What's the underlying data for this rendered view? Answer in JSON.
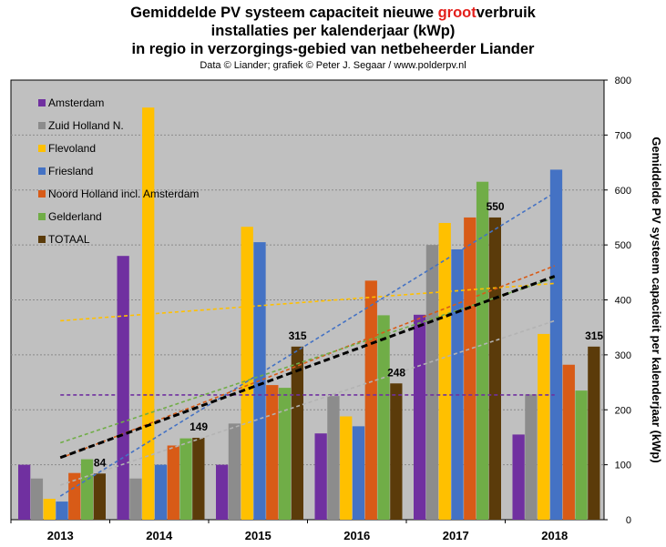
{
  "title": {
    "line1_prefix": "Gemiddelde  PV systeem capaciteit nieuwe ",
    "line1_highlight": "groot",
    "line1_suffix": "verbruik",
    "line2": "installaties  per kalenderjaar (kWp)",
    "line3": "in regio in verzorgings-gebied  van netbeheerder Liander",
    "highlight_color": "#e3201c"
  },
  "subtitle": "Data © Liander; grafiek © Peter J. Segaar / www.polderpv.nl",
  "chart_data": {
    "type": "bar",
    "categories": [
      "2013",
      "2014",
      "2015",
      "2016",
      "2017",
      "2018"
    ],
    "ylabel": "Gemiddelde  PV  systeem capaciteit  per kalenderjaar  (kWp)",
    "ylim": [
      0,
      800
    ],
    "yticks": [
      "0",
      "100",
      "200",
      "300",
      "400",
      "500",
      "600",
      "700",
      "800"
    ],
    "grid": true,
    "legend_position": "top-left",
    "series": [
      {
        "name": "Amsterdam",
        "color": "#7030a0",
        "values": [
          100,
          480,
          100,
          157,
          373,
          155
        ]
      },
      {
        "name": "Zuid Holland N.",
        "color": "#8c8c8c",
        "values": [
          75,
          75,
          175,
          225,
          500,
          228
        ]
      },
      {
        "name": "Flevoland",
        "color": "#ffc000",
        "values": [
          38,
          750,
          533,
          188,
          540,
          338
        ]
      },
      {
        "name": "Friesland",
        "color": "#4472c4",
        "values": [
          33,
          100,
          505,
          170,
          492,
          637
        ]
      },
      {
        "name": "Noord Holland incl. Amsterdam",
        "color": "#d85b17",
        "values": [
          85,
          135,
          245,
          435,
          550,
          282
        ]
      },
      {
        "name": "Gelderland",
        "color": "#70ad47",
        "values": [
          110,
          148,
          240,
          372,
          615,
          235
        ]
      },
      {
        "name": "TOTAAL",
        "color": "#5b3b0a",
        "values": [
          84,
          149,
          315,
          248,
          550,
          315
        ]
      }
    ],
    "data_labels": [
      "84",
      "149",
      "315",
      "248",
      "550",
      "315"
    ],
    "trendlines": [
      {
        "series": "Amsterdam",
        "start": 227,
        "end": 227,
        "color": "#7030a0"
      },
      {
        "series": "Zuid Holland N.",
        "start": 63,
        "end": 362,
        "color": "#b3b3b3"
      },
      {
        "series": "Flevoland",
        "start": 362,
        "end": 430,
        "color": "#ffc000"
      },
      {
        "series": "Friesland",
        "start": 43,
        "end": 595,
        "color": "#4472c4"
      },
      {
        "series": "Noord Holland incl. Amsterdam",
        "start": 112,
        "end": 462,
        "color": "#d85b17"
      },
      {
        "series": "Gelderland",
        "start": 140,
        "end": 440,
        "color": "#70ad47"
      },
      {
        "series": "TOTAAL",
        "start": 113,
        "end": 443,
        "color": "#000000"
      }
    ]
  }
}
